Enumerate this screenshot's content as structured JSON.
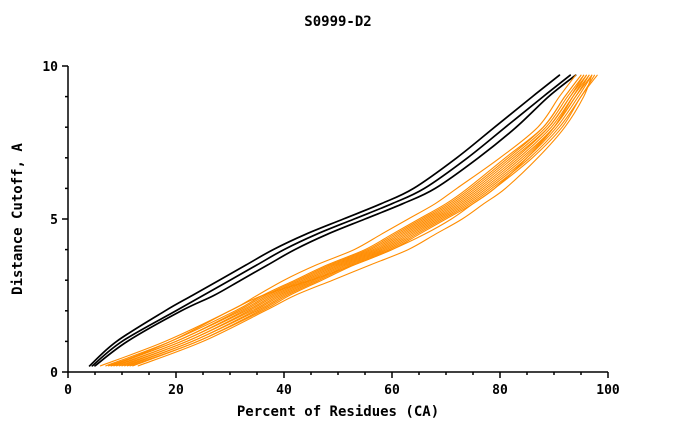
{
  "chart_data": {
    "type": "line",
    "title": "S0999-D2",
    "xlabel": "Percent of Residues (CA)",
    "ylabel": "Distance Cutoff, A",
    "xlim": [
      0,
      100
    ],
    "ylim": [
      0,
      10
    ],
    "x_ticks": [
      0,
      20,
      40,
      60,
      80,
      100
    ],
    "y_ticks": [
      0,
      5,
      10
    ],
    "x_minor_step": 5,
    "y_minor_step": 1,
    "grid": false,
    "legend": "none",
    "colors": {
      "black": "#000000",
      "orange": "#ff8c00"
    },
    "y_values": [
      0.2,
      1,
      2,
      2.5,
      3,
      3.5,
      4,
      4.5,
      5,
      5.5,
      6,
      7,
      8,
      9,
      9.7
    ],
    "series": [
      {
        "name": "black-1",
        "group": "black",
        "x": [
          4,
          9,
          18,
          23,
          28,
          33,
          38,
          44,
          51,
          58,
          64,
          72,
          79,
          86,
          91
        ]
      },
      {
        "name": "black-2",
        "group": "black",
        "x": [
          4.5,
          10,
          20,
          25,
          30,
          35,
          40,
          46,
          53,
          60,
          66,
          74,
          81,
          88,
          93
        ]
      },
      {
        "name": "black-3",
        "group": "black",
        "x": [
          5,
          11,
          21,
          27,
          32,
          37,
          42,
          48,
          55,
          62,
          68,
          76,
          83,
          89,
          94
        ]
      },
      {
        "name": "orange-1",
        "group": "orange",
        "x": [
          6,
          18,
          30,
          35,
          40,
          46,
          53,
          58,
          63,
          68,
          72,
          80,
          87,
          91,
          94
        ]
      },
      {
        "name": "orange-2",
        "group": "orange",
        "x": [
          7,
          19,
          31,
          36,
          42,
          48,
          55,
          60,
          65,
          70,
          74,
          81,
          88,
          92,
          95
        ]
      },
      {
        "name": "orange-3",
        "group": "orange",
        "x": [
          7.5,
          20,
          31.5,
          36.5,
          42.5,
          48.5,
          55.5,
          60.5,
          65.5,
          70.5,
          74.5,
          81.5,
          88,
          92,
          95
        ]
      },
      {
        "name": "orange-4",
        "group": "orange",
        "x": [
          8,
          20,
          32,
          37,
          43,
          49,
          56,
          61,
          66,
          71,
          75,
          82,
          88.5,
          92.5,
          95.5
        ]
      },
      {
        "name": "orange-5",
        "group": "orange",
        "x": [
          8.5,
          21,
          32.5,
          37.5,
          43.5,
          49.5,
          56.5,
          61.5,
          66.5,
          71.5,
          75.5,
          82.5,
          89,
          93,
          95.5
        ]
      },
      {
        "name": "orange-6",
        "group": "orange",
        "x": [
          9,
          21,
          33,
          38,
          44,
          50,
          57,
          62,
          67,
          72,
          76,
          83,
          89,
          93,
          96
        ]
      },
      {
        "name": "orange-7",
        "group": "orange",
        "x": [
          9.5,
          22,
          33.5,
          38.5,
          44.5,
          50.5,
          57.5,
          62.5,
          67.5,
          72.5,
          76.5,
          83.5,
          89.5,
          93.5,
          96.5
        ]
      },
      {
        "name": "orange-8",
        "group": "orange",
        "x": [
          10,
          22,
          34,
          39,
          45,
          51,
          58,
          63,
          68,
          73,
          77,
          84,
          90,
          94,
          96.5
        ]
      },
      {
        "name": "orange-9",
        "group": "orange",
        "x": [
          10.5,
          23,
          34.5,
          39.5,
          45.5,
          51.5,
          58.5,
          63.5,
          68.5,
          73.5,
          77.5,
          84.5,
          90,
          94,
          97
        ]
      },
      {
        "name": "orange-10",
        "group": "orange",
        "x": [
          11,
          23,
          35,
          40,
          46,
          52,
          59,
          64,
          69,
          74,
          78,
          85,
          90.5,
          94.5,
          97
        ]
      },
      {
        "name": "orange-11",
        "group": "orange",
        "x": [
          11.5,
          24,
          35.5,
          40.5,
          46.5,
          52.5,
          59.5,
          64.5,
          69.5,
          74.5,
          78.5,
          85.5,
          91,
          95,
          97.5
        ]
      },
      {
        "name": "orange-12",
        "group": "orange",
        "x": [
          12,
          24,
          36,
          41,
          47,
          53,
          60,
          65,
          70,
          75,
          79,
          86,
          91.5,
          95,
          98
        ]
      },
      {
        "name": "orange-13",
        "group": "orange",
        "x": [
          13,
          25,
          36.5,
          42,
          49,
          56,
          63,
          68,
          73,
          77,
          81,
          87,
          92,
          95.5,
          97
        ]
      },
      {
        "name": "orange-14",
        "group": "orange",
        "x": [
          8,
          19,
          30,
          36,
          45,
          53,
          60,
          66,
          71,
          75,
          79,
          85,
          90,
          93.5,
          96
        ]
      }
    ]
  }
}
